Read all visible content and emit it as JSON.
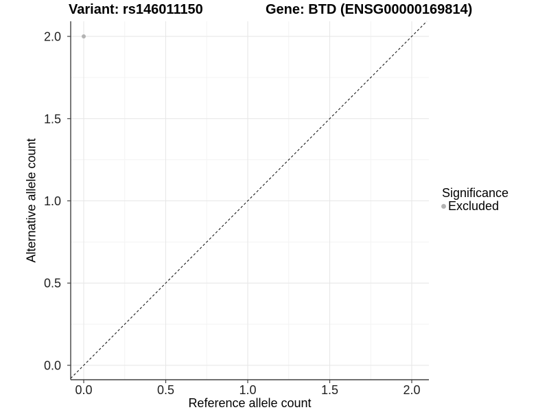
{
  "chart_data": {
    "type": "scatter",
    "title_left": "Variant: rs146011150",
    "title_right": "Gene: BTD (ENSG00000169814)",
    "xlabel": "Reference allele count",
    "ylabel": "Alternative allele count",
    "x_domain": [
      -0.0795,
      2.1046
    ],
    "y_domain": [
      -0.0877,
      2.0919
    ],
    "tick_values": [
      0.0,
      0.5,
      1.0,
      1.5,
      2.0
    ],
    "tick_labels": [
      "0.0",
      "0.5",
      "1.0",
      "1.5",
      "2.0"
    ],
    "minor_tick_values": [
      0.25,
      0.75,
      1.25,
      1.75
    ],
    "grid": {
      "major": true,
      "minor": true
    },
    "reference_line": {
      "equation": "y = x",
      "style": "dashed"
    },
    "points": [
      {
        "x": 0.0,
        "y": 2.0,
        "series": "Excluded",
        "color": "#b3b3b3",
        "radius": 3
      }
    ],
    "legend": {
      "title": "Significance",
      "position": "right",
      "items": [
        {
          "label": "Excluded",
          "color": "#b3b3b3",
          "marker": "circle"
        }
      ]
    },
    "colors": {
      "background": "#ffffff",
      "grid_major": "#e6e6e6",
      "grid_minor": "#f3f3f3",
      "axis_line": "#404040",
      "tick_text": "#1f1f1f",
      "dashed_line": "#1a1a1a"
    }
  }
}
